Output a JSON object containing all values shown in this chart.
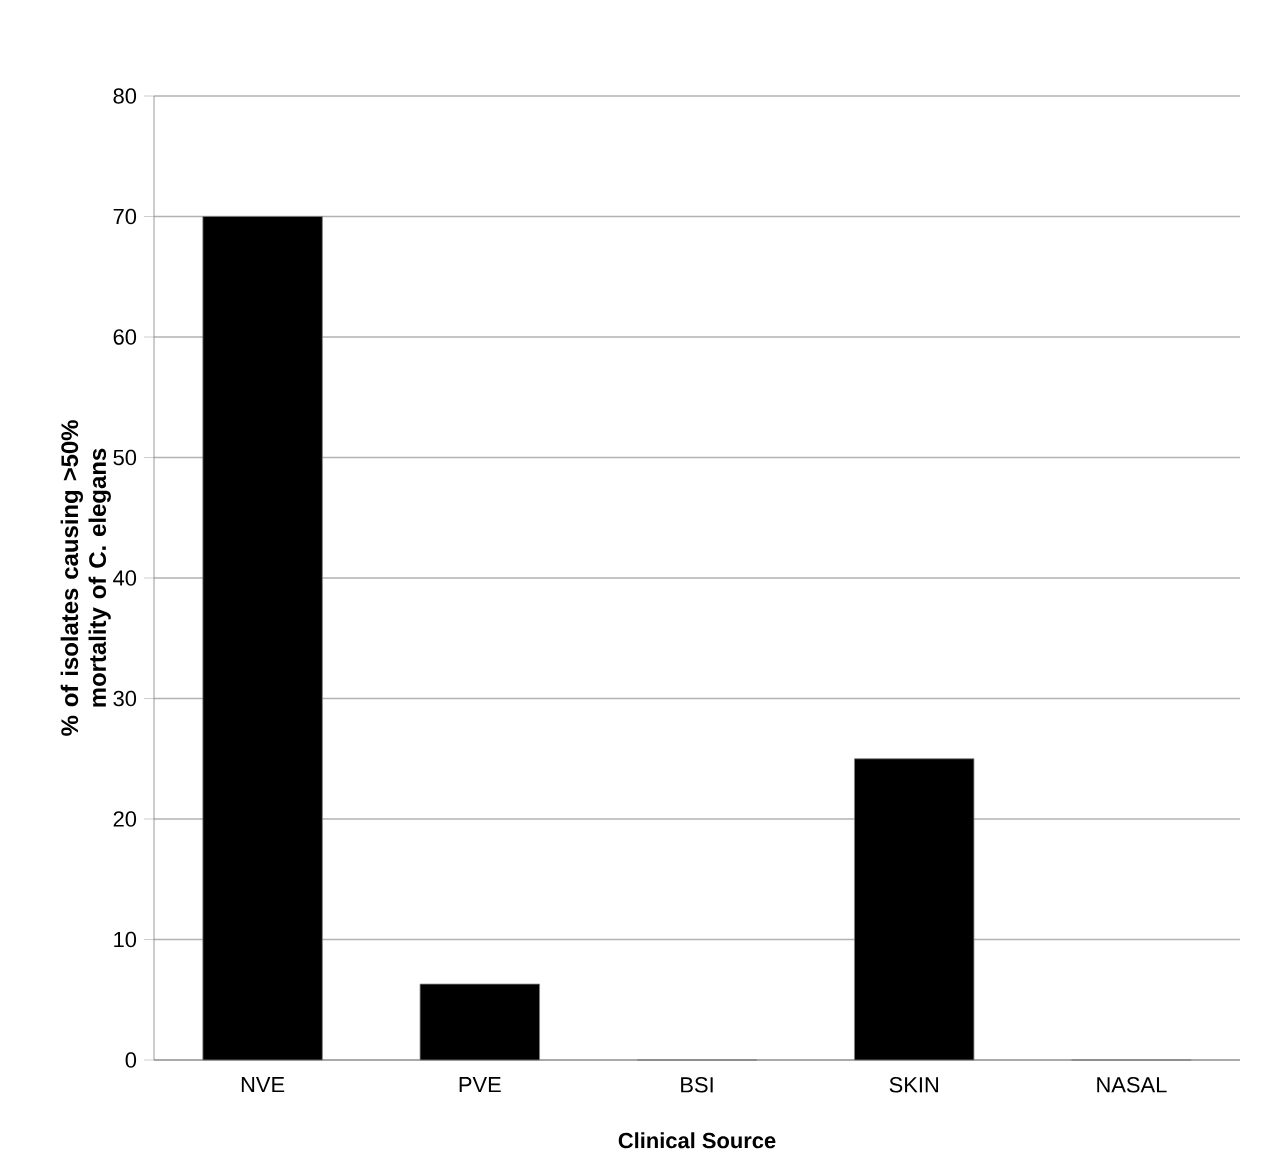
{
  "chart_data": {
    "type": "bar",
    "xlabel": "Clinical Source",
    "ylabel": "% of isolates causing >50% mortality of C. elegans",
    "categories": [
      "NVE",
      "PVE",
      "BSI",
      "SKIN",
      "NASAL"
    ],
    "values": [
      70,
      6.3,
      0,
      25,
      0
    ],
    "color": "#000000",
    "ylim": [
      0,
      80
    ],
    "yticks": [
      0,
      10,
      20,
      30,
      40,
      50,
      60,
      70,
      80
    ],
    "grid": "y"
  }
}
